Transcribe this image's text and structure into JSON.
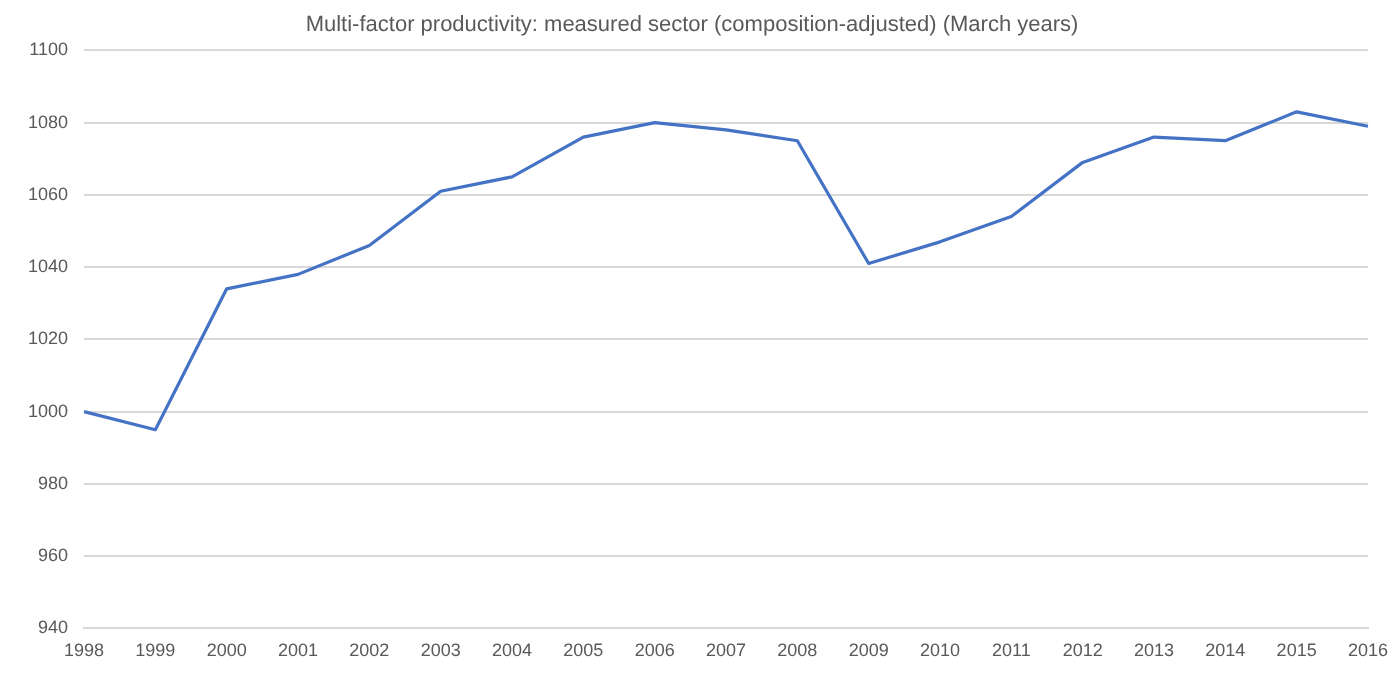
{
  "chart_data": {
    "type": "line",
    "title": "Multi-factor productivity: measured sector (composition-adjusted) (March years)",
    "categories": [
      "1998",
      "1999",
      "2000",
      "2001",
      "2002",
      "2003",
      "2004",
      "2005",
      "2006",
      "2007",
      "2008",
      "2009",
      "2010",
      "2011",
      "2012",
      "2013",
      "2014",
      "2015",
      "2016"
    ],
    "series": [
      {
        "color": "#4472c4",
        "values": [
          1000,
          995,
          1034,
          1038,
          1046,
          1061,
          1065,
          1076,
          1080,
          1078,
          1075,
          1041,
          1047,
          1054,
          1069,
          1076,
          1075,
          1083,
          1079
        ]
      }
    ],
    "ylim": [
      940,
      1100
    ],
    "yticks": [
      940,
      960,
      980,
      1000,
      1020,
      1040,
      1060,
      1080,
      1100
    ],
    "grid": "y",
    "legend": false,
    "marker": "none",
    "line_style": "solid"
  }
}
